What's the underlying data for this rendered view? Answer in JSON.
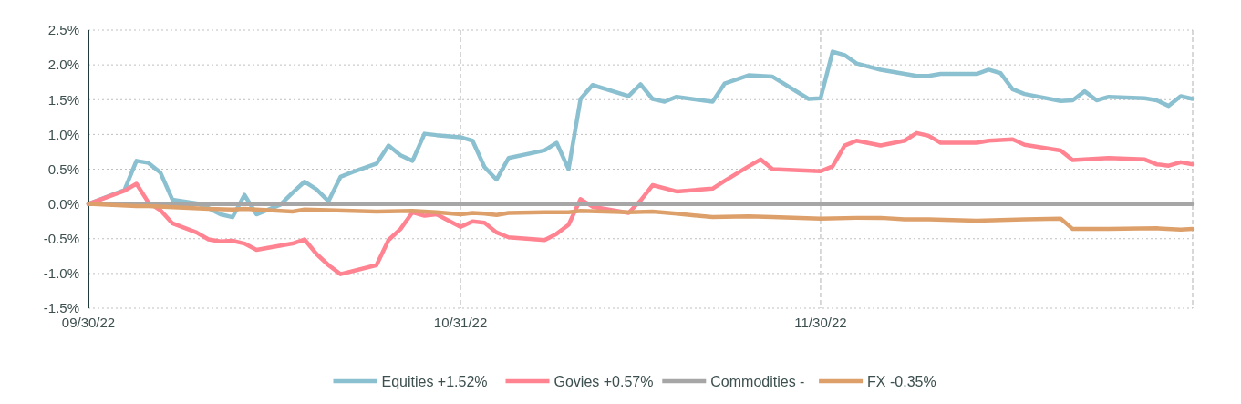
{
  "chart_data": {
    "type": "line",
    "xlim": [
      "2022-09-30",
      "2022-12-31"
    ],
    "xticks": [
      {
        "value": "2022-09-30",
        "label": "09/30/22"
      },
      {
        "value": "2022-10-31",
        "label": "10/31/22"
      },
      {
        "value": "2022-11-30",
        "label": "11/30/22"
      },
      {
        "value": "2022-12-31",
        "label": null
      }
    ],
    "ylim": [
      -1.5,
      2.5
    ],
    "yticks": [
      {
        "value": -1.5,
        "label": "-1.5%"
      },
      {
        "value": -1,
        "label": "-1.0%"
      },
      {
        "value": -0.5,
        "label": "-0.5%"
      },
      {
        "value": 0,
        "label": "0.0%"
      },
      {
        "value": 0.5,
        "label": "0.5%"
      },
      {
        "value": 1,
        "label": "1.0%"
      },
      {
        "value": 1.5,
        "label": "1.5%"
      },
      {
        "value": 2,
        "label": "2.0%"
      },
      {
        "value": 2.5,
        "label": "2.5%"
      }
    ],
    "grid": true,
    "legend": "bottom",
    "marker": "none",
    "line_style": "solid",
    "series": [
      {
        "name": "Equities +1.52%",
        "color": "#8bc0d0",
        "x": [
          "2022-09-30",
          "2022-10-03",
          "2022-10-04",
          "2022-10-05",
          "2022-10-06",
          "2022-10-07",
          "2022-10-09",
          "2022-10-10",
          "2022-10-11",
          "2022-10-12",
          "2022-10-13",
          "2022-10-14",
          "2022-10-16",
          "2022-10-17",
          "2022-10-18",
          "2022-10-19",
          "2022-10-20",
          "2022-10-21",
          "2022-10-22",
          "2022-10-24",
          "2022-10-25",
          "2022-10-26",
          "2022-10-27",
          "2022-10-28",
          "2022-10-29",
          "2022-10-31",
          "2022-11-01",
          "2022-11-02",
          "2022-11-03",
          "2022-11-04",
          "2022-11-07",
          "2022-11-08",
          "2022-11-09",
          "2022-11-10",
          "2022-11-11",
          "2022-11-14",
          "2022-11-15",
          "2022-11-16",
          "2022-11-17",
          "2022-11-18",
          "2022-11-21",
          "2022-11-22",
          "2022-11-24",
          "2022-11-26",
          "2022-11-29",
          "2022-11-30",
          "2022-12-01",
          "2022-12-02",
          "2022-12-03",
          "2022-12-05",
          "2022-12-07",
          "2022-12-08",
          "2022-12-09",
          "2022-12-10",
          "2022-12-13",
          "2022-12-14",
          "2022-12-15",
          "2022-12-16",
          "2022-12-17",
          "2022-12-20",
          "2022-12-21",
          "2022-12-22",
          "2022-12-23",
          "2022-12-24",
          "2022-12-27",
          "2022-12-28",
          "2022-12-29",
          "2022-12-30",
          "2022-12-31"
        ],
        "values": [
          0,
          0.2,
          0.62,
          0.59,
          0.45,
          0.06,
          0.01,
          -0.06,
          -0.15,
          -0.19,
          0.13,
          -0.15,
          -0.01,
          0.16,
          0.32,
          0.21,
          0.04,
          0.39,
          0.46,
          0.58,
          0.84,
          0.7,
          0.62,
          1.01,
          0.99,
          0.96,
          0.91,
          0.53,
          0.35,
          0.66,
          0.77,
          0.88,
          0.5,
          1.51,
          1.71,
          1.55,
          1.72,
          1.51,
          1.47,
          1.54,
          1.47,
          1.73,
          1.85,
          1.83,
          1.51,
          1.52,
          2.19,
          2.14,
          2.02,
          1.93,
          1.87,
          1.84,
          1.84,
          1.87,
          1.87,
          1.93,
          1.88,
          1.65,
          1.58,
          1.48,
          1.49,
          1.62,
          1.49,
          1.54,
          1.52,
          1.49,
          1.41,
          1.55,
          1.51
        ]
      },
      {
        "name": "Govies +0.57%",
        "color": "#ff8391",
        "x": [
          "2022-09-30",
          "2022-10-03",
          "2022-10-04",
          "2022-10-05",
          "2022-10-06",
          "2022-10-07",
          "2022-10-09",
          "2022-10-10",
          "2022-10-11",
          "2022-10-12",
          "2022-10-13",
          "2022-10-14",
          "2022-10-17",
          "2022-10-18",
          "2022-10-19",
          "2022-10-20",
          "2022-10-21",
          "2022-10-24",
          "2022-10-25",
          "2022-10-26",
          "2022-10-27",
          "2022-10-28",
          "2022-10-29",
          "2022-10-31",
          "2022-11-01",
          "2022-11-02",
          "2022-11-03",
          "2022-11-04",
          "2022-11-07",
          "2022-11-08",
          "2022-11-09",
          "2022-11-10",
          "2022-11-11",
          "2022-11-14",
          "2022-11-15",
          "2022-11-16",
          "2022-11-18",
          "2022-11-21",
          "2022-11-22",
          "2022-11-24",
          "2022-11-25",
          "2022-11-26",
          "2022-11-30",
          "2022-12-01",
          "2022-12-02",
          "2022-12-03",
          "2022-12-05",
          "2022-12-07",
          "2022-12-08",
          "2022-12-09",
          "2022-12-10",
          "2022-12-13",
          "2022-12-14",
          "2022-12-16",
          "2022-12-17",
          "2022-12-20",
          "2022-12-21",
          "2022-12-24",
          "2022-12-27",
          "2022-12-28",
          "2022-12-29",
          "2022-12-30",
          "2022-12-31"
        ],
        "values": [
          0,
          0.19,
          0.29,
          0.02,
          -0.09,
          -0.28,
          -0.41,
          -0.51,
          -0.54,
          -0.53,
          -0.57,
          -0.66,
          -0.57,
          -0.51,
          -0.72,
          -0.88,
          -1.01,
          -0.88,
          -0.52,
          -0.36,
          -0.12,
          -0.17,
          -0.15,
          -0.33,
          -0.25,
          -0.27,
          -0.41,
          -0.48,
          -0.52,
          -0.43,
          -0.3,
          0.07,
          -0.04,
          -0.13,
          0.05,
          0.27,
          0.18,
          0.22,
          0.33,
          0.54,
          0.64,
          0.5,
          0.47,
          0.54,
          0.84,
          0.91,
          0.84,
          0.91,
          1.02,
          0.98,
          0.88,
          0.88,
          0.91,
          0.93,
          0.85,
          0.77,
          0.63,
          0.66,
          0.64,
          0.57,
          0.55,
          0.6,
          0.57
        ]
      },
      {
        "name": "Commodities -",
        "color": "#a6a6a6",
        "x": [
          "2022-09-30",
          "2022-12-31"
        ],
        "values": [
          0,
          0
        ]
      },
      {
        "name": "FX -0.35%",
        "color": "#dea06b",
        "x": [
          "2022-09-30",
          "2022-10-04",
          "2022-10-05",
          "2022-10-10",
          "2022-10-12",
          "2022-10-13",
          "2022-10-17",
          "2022-10-18",
          "2022-10-24",
          "2022-10-27",
          "2022-10-29",
          "2022-10-31",
          "2022-11-01",
          "2022-11-02",
          "2022-11-03",
          "2022-11-04",
          "2022-11-07",
          "2022-11-09",
          "2022-11-10",
          "2022-11-14",
          "2022-11-16",
          "2022-11-18",
          "2022-11-21",
          "2022-11-24",
          "2022-11-26",
          "2022-11-30",
          "2022-12-03",
          "2022-12-05",
          "2022-12-07",
          "2022-12-09",
          "2022-12-13",
          "2022-12-17",
          "2022-12-20",
          "2022-12-21",
          "2022-12-24",
          "2022-12-28",
          "2022-12-30",
          "2022-12-31"
        ],
        "values": [
          0,
          -0.03,
          -0.03,
          -0.07,
          -0.08,
          -0.07,
          -0.11,
          -0.08,
          -0.11,
          -0.1,
          -0.12,
          -0.15,
          -0.13,
          -0.14,
          -0.16,
          -0.13,
          -0.12,
          -0.12,
          -0.1,
          -0.12,
          -0.11,
          -0.14,
          -0.19,
          -0.18,
          -0.19,
          -0.21,
          -0.2,
          -0.2,
          -0.22,
          -0.22,
          -0.24,
          -0.22,
          -0.21,
          -0.36,
          -0.36,
          -0.35,
          -0.37,
          -0.36
        ]
      }
    ]
  }
}
